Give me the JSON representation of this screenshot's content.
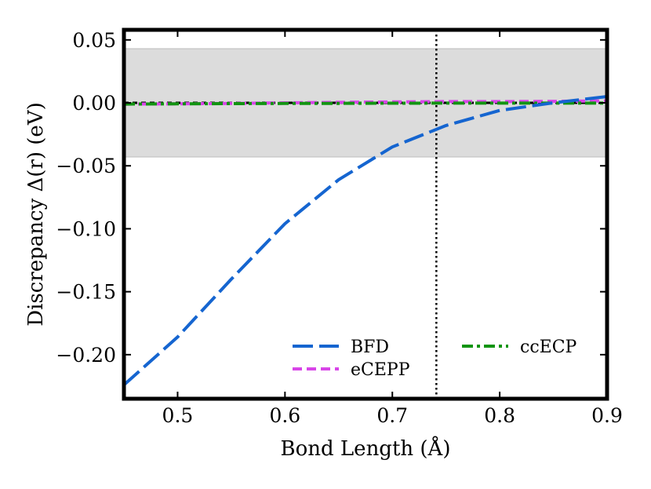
{
  "chart_data": {
    "type": "line",
    "title": "",
    "xlabel": "Bond Length (Å)",
    "ylabel": "Discrepancy Δ(r) (eV)",
    "xlim": [
      0.45,
      0.9
    ],
    "ylim": [
      -0.235,
      0.058
    ],
    "x_ticks": [
      0.5,
      0.6,
      0.7,
      0.8,
      0.9
    ],
    "x_tick_labels": [
      "0.5",
      "0.6",
      "0.7",
      "0.8",
      "0.9"
    ],
    "y_ticks": [
      0.05,
      0.0,
      -0.05,
      -0.1,
      -0.15,
      -0.2
    ],
    "y_tick_labels": [
      "0.05",
      "0.00",
      "−0.05",
      "−0.10",
      "−0.15",
      "−0.20"
    ],
    "band": {
      "ymin": -0.043,
      "ymax": 0.043,
      "color": "#dcdcdc"
    },
    "reference_line": {
      "x": 0.741
    },
    "series": [
      {
        "name": "BFD",
        "color": "#1565d0",
        "x": [
          0.45,
          0.5,
          0.55,
          0.6,
          0.65,
          0.7,
          0.75,
          0.8,
          0.85,
          0.9
        ],
        "values": [
          -0.224,
          -0.186,
          -0.14,
          -0.096,
          -0.061,
          -0.035,
          -0.018,
          -0.006,
          0.0,
          0.005
        ]
      },
      {
        "name": "eCEPP",
        "color": "#d845e8",
        "x": [
          0.45,
          0.5,
          0.55,
          0.6,
          0.65,
          0.7,
          0.75,
          0.8,
          0.85,
          0.9
        ],
        "values": [
          -0.001,
          -0.0008,
          -0.0005,
          0.0,
          0.0004,
          0.0008,
          0.001,
          0.001,
          0.0012,
          0.0015
        ]
      },
      {
        "name": "ccECP",
        "color": "#129412",
        "x": [
          0.45,
          0.5,
          0.55,
          0.6,
          0.65,
          0.7,
          0.75,
          0.8,
          0.85,
          0.9
        ],
        "values": [
          -0.001,
          -0.0008,
          -0.0006,
          -0.0005,
          -0.0004,
          -0.0003,
          -0.0002,
          -0.0002,
          -0.0002,
          -0.0002
        ]
      }
    ],
    "legend": {
      "location": "lower-right",
      "entries": [
        "BFD",
        "eCEPP",
        "ccECP"
      ]
    }
  }
}
